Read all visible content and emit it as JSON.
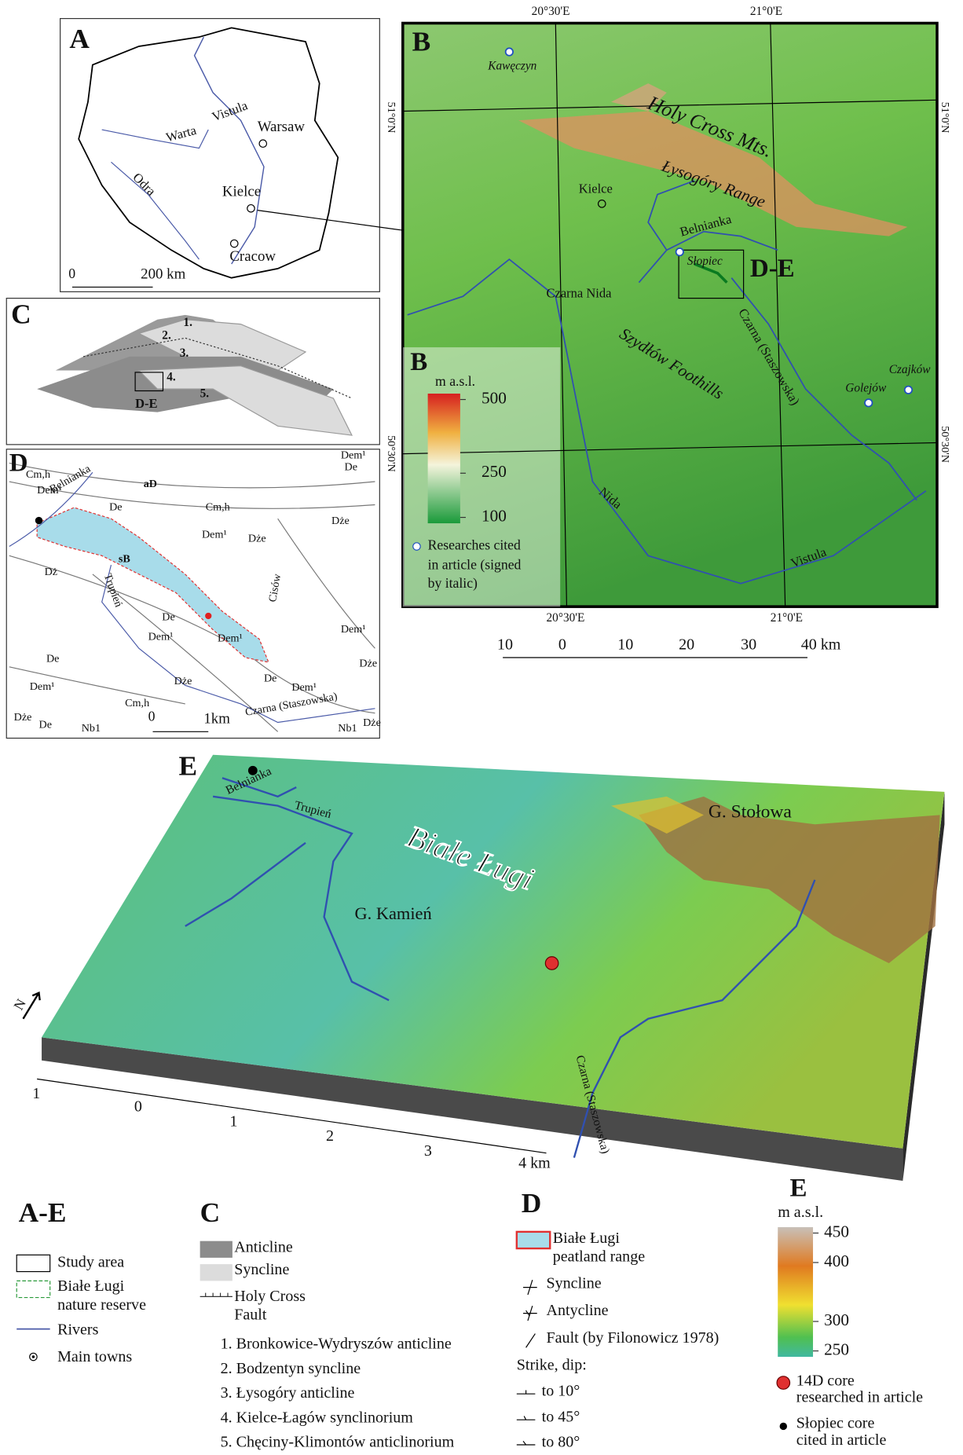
{
  "panel_a": {
    "label": "A",
    "places": [
      "Warsaw",
      "Kielce",
      "Cracow"
    ],
    "rivers": [
      "Vistula",
      "Warta",
      "Odra"
    ],
    "scale": [
      "0",
      "200 km"
    ]
  },
  "panel_b": {
    "label": "B",
    "lon_ticks": [
      "20°30'E",
      "21°0'E"
    ],
    "lat_ticks": [
      "51°0'N",
      "50°30'N"
    ],
    "places": [
      "Kielce",
      "Kawęczyn",
      "Słopiec",
      "Czajków",
      "Golejów"
    ],
    "features": [
      "Holy Cross Mts.",
      "Łysogóry Range",
      "Szydłów Foothills"
    ],
    "rivers": [
      "Belnianka",
      "Czarna Nida",
      "Czarna (Staszowska)",
      "Nida",
      "Vistula"
    ],
    "box_label": "D-E",
    "legend": {
      "label": "B",
      "unit": "m a.s.l.",
      "ticks": [
        500,
        250,
        100
      ],
      "ylim": [
        80,
        520
      ],
      "note": [
        "Researches cited",
        "in article (signed",
        "by italic)"
      ]
    },
    "scale": [
      "10",
      "0",
      "10",
      "20",
      "30",
      "40 km"
    ]
  },
  "panel_c": {
    "label": "C",
    "units": [
      "1.",
      "2.",
      "3.",
      "4.",
      "5."
    ],
    "box_label": "D-E"
  },
  "panel_d": {
    "label": "D",
    "labels": [
      "Cm,h",
      "Dem¹",
      "De",
      "aD",
      "Cm,h",
      "Dem¹",
      "Dem¹",
      "De",
      "Dże",
      "Dże",
      "sB",
      "Dż",
      "De",
      "Dem¹",
      "Dem¹",
      "De",
      "Dem¹",
      "Dże",
      "De",
      "Dem¹",
      "Dże",
      "Cm,h",
      "Dże",
      "De",
      "Nb1",
      "Nb1",
      "Dże",
      "Dem¹"
    ],
    "rivers": [
      "Belnianka",
      "Trupień",
      "Cisów",
      "Czarna (Staszowska)"
    ],
    "scale": [
      "0",
      "1km"
    ]
  },
  "panel_e": {
    "label": "E",
    "places": [
      "Białe Ługi",
      "G. Stołowa",
      "G. Kamień"
    ],
    "rivers": [
      "Belnianka",
      "Trupień",
      "Czarna (Staszowska)"
    ],
    "north": "N",
    "scale": [
      "1",
      "0",
      "1",
      "2",
      "3",
      "4 km"
    ]
  },
  "legend_ae": {
    "title": "A-E",
    "items": [
      "Study area",
      [
        "Białe Ługi",
        "nature reserve"
      ],
      "Rivers",
      "Main towns"
    ]
  },
  "legend_c": {
    "title": "C",
    "items": [
      "Anticline",
      "Syncline",
      [
        "Holy Cross",
        "Fault"
      ]
    ],
    "units": [
      "1. Bronkowice-Wydryszów anticline",
      "2. Bodzentyn syncline",
      "3. Łysogóry anticline",
      "4. Kielce-Łagów synclinorium",
      "5. Chęciny-Klimontów anticlinorium"
    ]
  },
  "legend_d": {
    "title": "D",
    "items": [
      [
        "Białe Ługi",
        "peatland range"
      ],
      "Syncline",
      "Antycline",
      "Fault (by Filonowicz 1978)"
    ],
    "strike_title": "Strike, dip:",
    "strike": [
      "to 10°",
      "to 45°",
      "to 80°"
    ]
  },
  "legend_e": {
    "title": "E",
    "unit": "m a.s.l.",
    "ticks": [
      450,
      400,
      300,
      250
    ],
    "ylim": [
      240,
      460
    ],
    "items": [
      [
        "14D core",
        "researched in article"
      ],
      [
        "Słopiec core",
        "cited in article"
      ]
    ]
  }
}
